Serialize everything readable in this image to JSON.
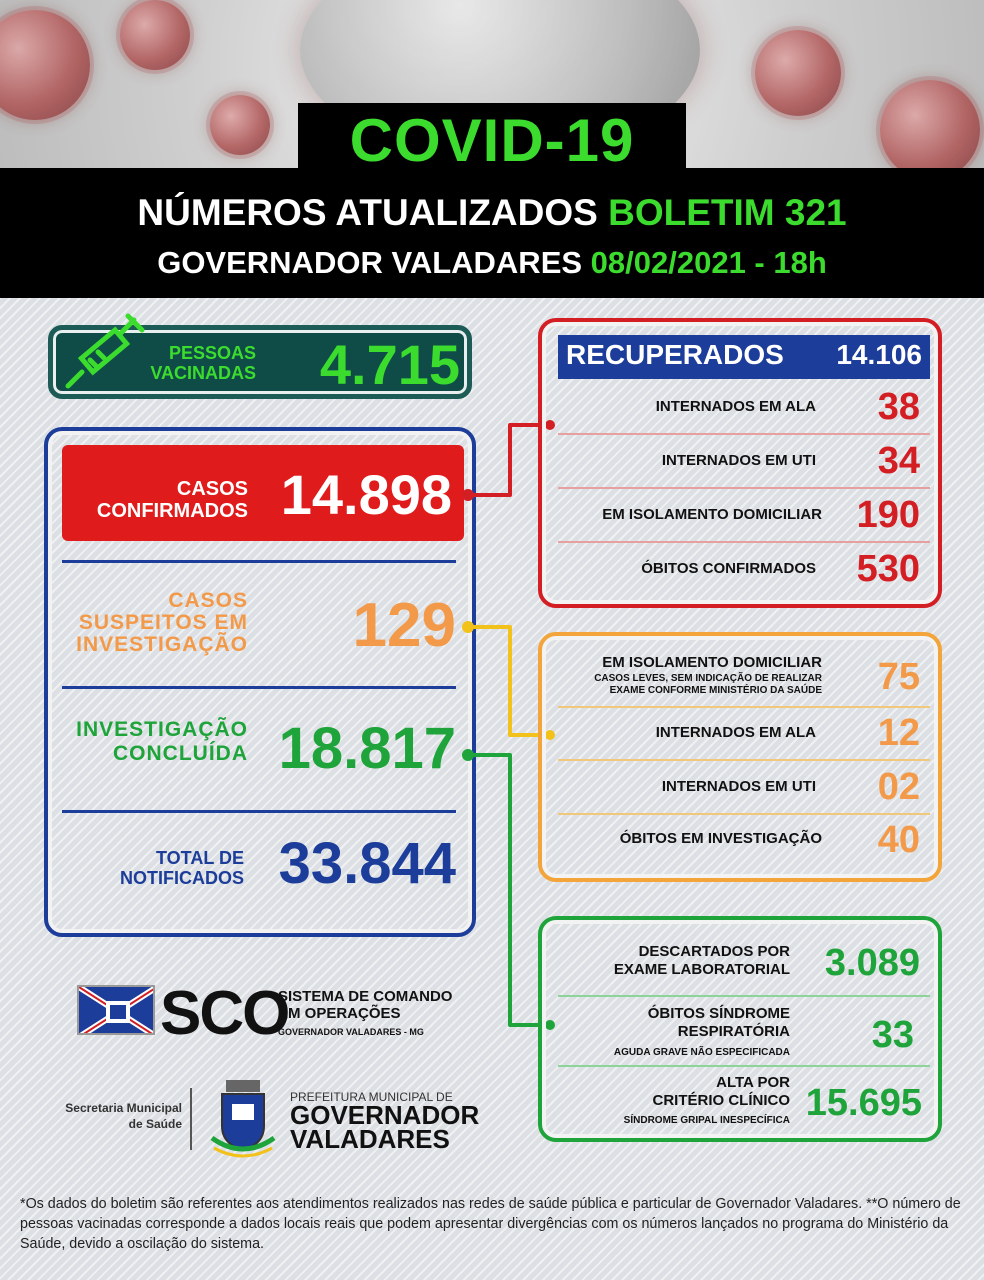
{
  "header": {
    "title": "COVID-19",
    "line1_prefix": "NÚMEROS ATUALIZADOS",
    "line1_highlight": "BOLETIM 321",
    "line2_prefix": "GOVERNADOR VALADARES",
    "line2_highlight": "08/02/2021 - 18h"
  },
  "vaccinated": {
    "label_line1": "PESSOAS",
    "label_line2": "VACINADAS",
    "value": "4.715"
  },
  "confirmed": {
    "label_line1": "CASOS",
    "label_line2": "CONFIRMADOS",
    "value": "14.898"
  },
  "suspected": {
    "label_line1": "CASOS",
    "label_line2": "SUSPEITOS EM",
    "label_line3": "INVESTIGAÇÃO",
    "value": "129"
  },
  "investigation_done": {
    "label_line1": "INVESTIGAÇÃO",
    "label_line2": "CONCLUÍDA",
    "value": "18.817"
  },
  "total_notified": {
    "label_line1": "TOTAL DE",
    "label_line2": "NOTIFICADOS",
    "value": "33.844"
  },
  "confirmed_breakdown": {
    "recovered_label": "RECUPERADOS",
    "recovered_value": "14.106",
    "rows": [
      {
        "label": "INTERNADOS EM ALA",
        "value": "38"
      },
      {
        "label": "INTERNADOS EM UTI",
        "value": "34"
      },
      {
        "label": "EM ISOLAMENTO DOMICILIAR",
        "value": "190"
      },
      {
        "label": "ÓBITOS CONFIRMADOS",
        "value": "530"
      }
    ]
  },
  "suspected_breakdown": {
    "rows": [
      {
        "label": "EM ISOLAMENTO DOMICILIAR",
        "sub1": "CASOS LEVES, SEM INDICAÇÃO DE REALIZAR",
        "sub2": "EXAME CONFORME MINISTÉRIO DA SAÚDE",
        "value": "75"
      },
      {
        "label": "INTERNADOS EM ALA",
        "value": "12"
      },
      {
        "label": "INTERNADOS EM UTI",
        "value": "02"
      },
      {
        "label": "ÓBITOS EM INVESTIGAÇÃO",
        "value": "40"
      }
    ]
  },
  "concluded_breakdown": {
    "rows": [
      {
        "label1": "DESCARTADOS POR",
        "label2": "EXAME LABORATORIAL",
        "value": "3.089"
      },
      {
        "label1": "ÓBITOS SÍNDROME",
        "label2": "RESPIRATÓRIA",
        "sub": "AGUDA GRAVE NÃO ESPECIFICADA",
        "value": "33"
      },
      {
        "label1": "ALTA POR",
        "label2": "CRITÉRIO CLÍNICO",
        "sub": "SÍNDROME GRIPAL INESPECÍFICA",
        "value": "15.695"
      }
    ]
  },
  "logos": {
    "sco": "SCO",
    "sco_line1": "SISTEMA DE COMANDO",
    "sco_line2": "EM OPERAÇÕES",
    "sco_line3": "GOVERNADOR VALADARES - MG",
    "secretaria_line1": "Secretaria Municipal",
    "secretaria_line2": "de Saúde",
    "prefeitura": "PREFEITURA MUNICIPAL DE",
    "city_line1": "GOVERNADOR",
    "city_line2": "VALADARES"
  },
  "footer": "*Os dados do boletim são referentes aos atendimentos realizados nas redes de saúde pública e particular de Governador Valadares. **O número de pessoas vacinadas corresponde a dados locais reais que podem apresentar divergências com os números lançados no programa do Ministério da Saúde, devido a oscilação do sistema.",
  "colors": {
    "red": "#d31e24",
    "orange": "#f29a4a",
    "green": "#1ea43a",
    "blue": "#1c3d9a",
    "neon_green": "#3bdc2e"
  }
}
